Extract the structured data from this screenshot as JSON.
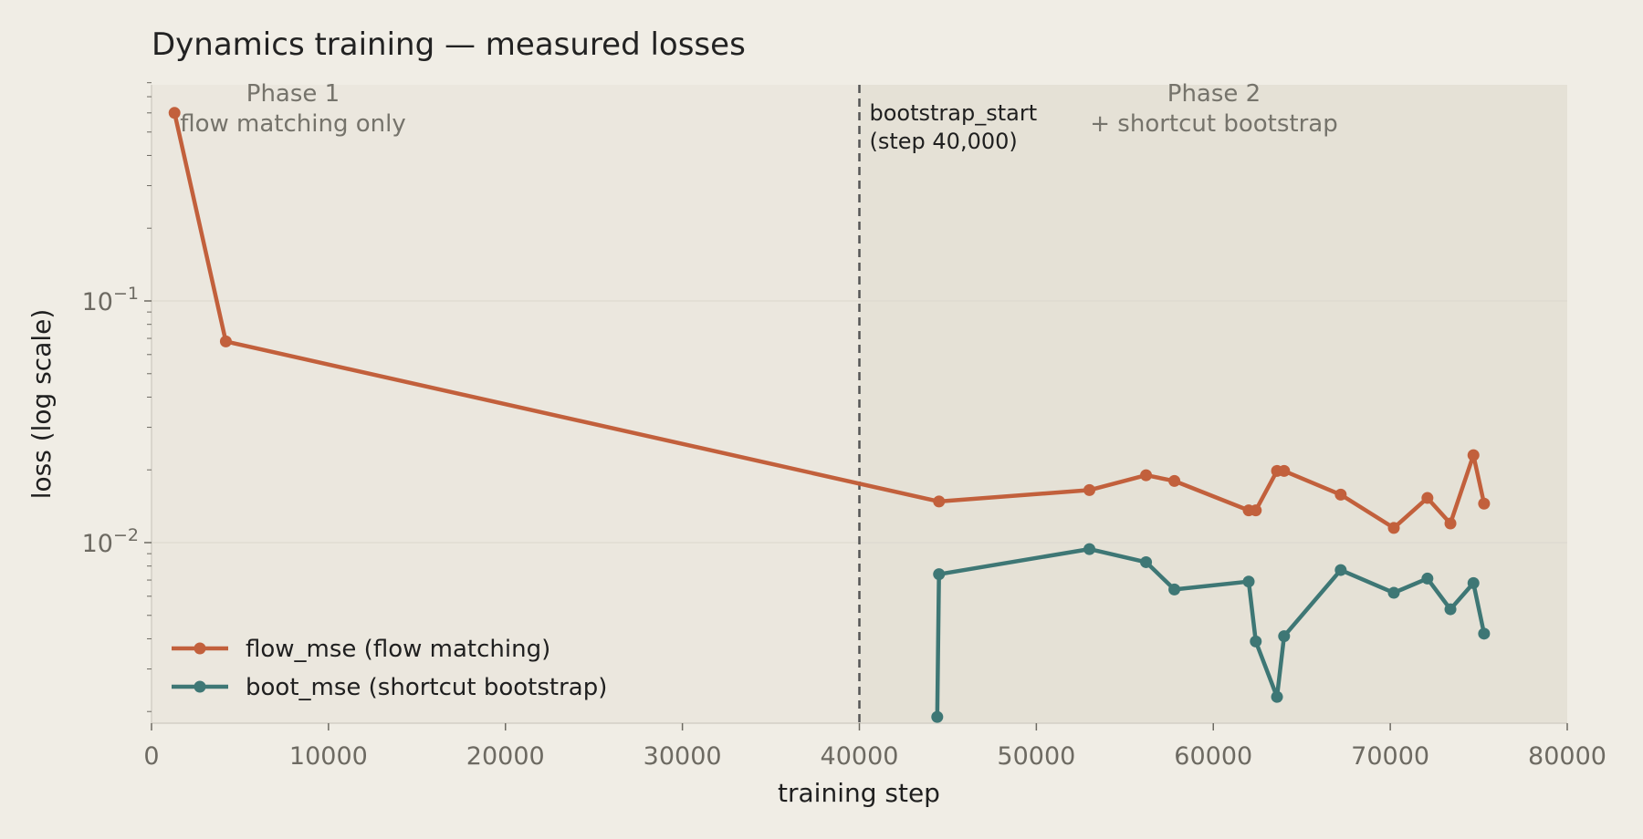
{
  "chart_data": {
    "type": "line",
    "title": "Dynamics training — measured losses",
    "xlabel": "training step",
    "ylabel": "loss (log scale)",
    "xlim": [
      0,
      80000
    ],
    "ylim": [
      0.0019,
      0.85
    ],
    "yscale": "log",
    "xticks": [
      0,
      10000,
      20000,
      30000,
      40000,
      50000,
      60000,
      70000,
      80000
    ],
    "xtick_labels": [
      "0",
      "10000",
      "20000",
      "30000",
      "40000",
      "50000",
      "60000",
      "70000",
      "80000"
    ],
    "yticks": [
      {
        "value": 0.1,
        "base": "10",
        "exp": "−1"
      },
      {
        "value": 0.01,
        "base": "10",
        "exp": "−2"
      }
    ],
    "grid": "horizontal",
    "legend_position": "lower-left",
    "phases": [
      {
        "lines": [
          "Phase 1",
          "flow matching only"
        ],
        "x_range": [
          0,
          40000
        ],
        "color": "#ebe7de"
      },
      {
        "lines": [
          "Phase 2",
          "+ shortcut bootstrap"
        ],
        "x_range": [
          40000,
          80000
        ],
        "color": "#e5e1d6"
      }
    ],
    "vline": {
      "x": 40000,
      "lines": [
        "bootstrap_start",
        "(step 40,000)"
      ]
    },
    "series": [
      {
        "name": "flow_mse  (flow matching)",
        "color": "#c2603c",
        "points": [
          [
            1300,
            0.6
          ],
          [
            4200,
            0.068
          ],
          [
            44500,
            0.0148
          ],
          [
            53000,
            0.0165
          ],
          [
            56200,
            0.019
          ],
          [
            57800,
            0.018
          ],
          [
            62000,
            0.0136
          ],
          [
            62400,
            0.0136
          ],
          [
            63600,
            0.0198
          ],
          [
            64000,
            0.0198
          ],
          [
            67200,
            0.0158
          ],
          [
            70200,
            0.0115
          ],
          [
            72100,
            0.0153
          ],
          [
            73400,
            0.012
          ],
          [
            74700,
            0.023
          ],
          [
            75300,
            0.0145
          ]
        ]
      },
      {
        "name": "boot_mse  (shortcut bootstrap)",
        "color": "#3e7775",
        "points": [
          [
            44400,
            0.0019
          ],
          [
            44500,
            0.0074
          ],
          [
            53000,
            0.0094
          ],
          [
            56200,
            0.0083
          ],
          [
            57800,
            0.0064
          ],
          [
            62000,
            0.0069
          ],
          [
            62400,
            0.0039
          ],
          [
            63600,
            0.0023
          ],
          [
            64000,
            0.0041
          ],
          [
            67200,
            0.0077
          ],
          [
            70200,
            0.0062
          ],
          [
            72100,
            0.0071
          ],
          [
            73400,
            0.0053
          ],
          [
            74700,
            0.0068
          ],
          [
            75300,
            0.0042
          ]
        ]
      }
    ]
  }
}
